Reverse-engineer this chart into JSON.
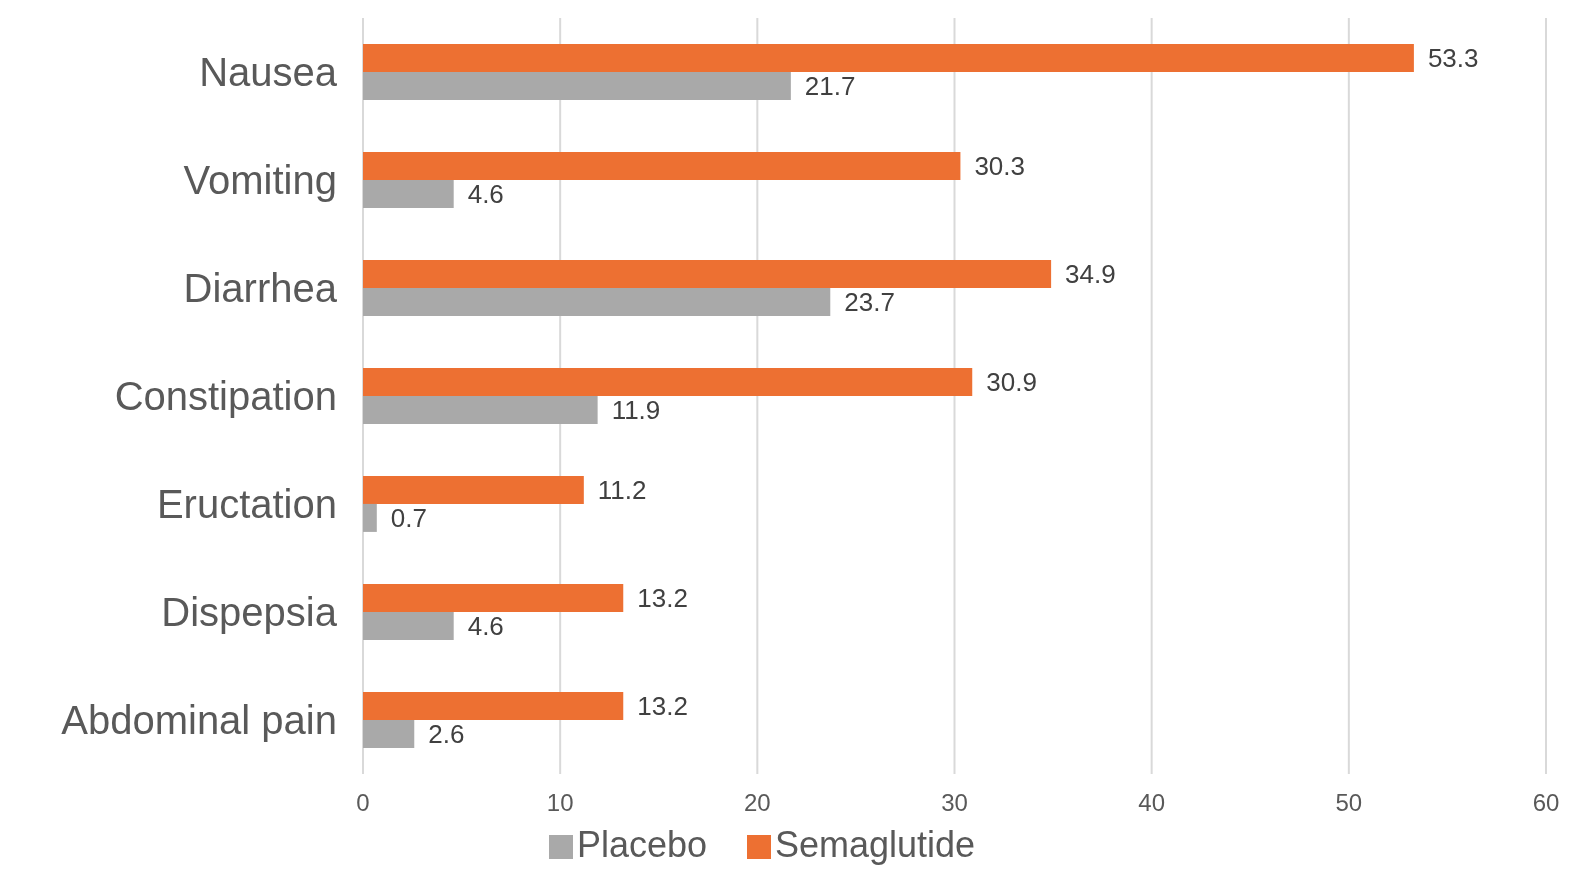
{
  "chart_data": {
    "type": "bar",
    "orientation": "horizontal",
    "categories": [
      "Nausea",
      "Vomiting",
      "Diarrhea",
      "Constipation",
      "Eructation",
      "Dispepsia",
      "Abdominal pain"
    ],
    "series": [
      {
        "name": "Semaglutide",
        "color": "#ed7032",
        "values": [
          53.3,
          30.3,
          34.9,
          30.9,
          11.2,
          13.2,
          13.2
        ]
      },
      {
        "name": "Placebo",
        "color": "#a9a9a9",
        "values": [
          21.7,
          4.6,
          23.7,
          11.9,
          0.7,
          4.6,
          2.6
        ]
      }
    ],
    "xlim": [
      0,
      60
    ],
    "xticks": [
      0,
      10,
      20,
      30,
      40,
      50,
      60
    ],
    "grid": "x",
    "legend": "bottom",
    "data_labels": true
  }
}
